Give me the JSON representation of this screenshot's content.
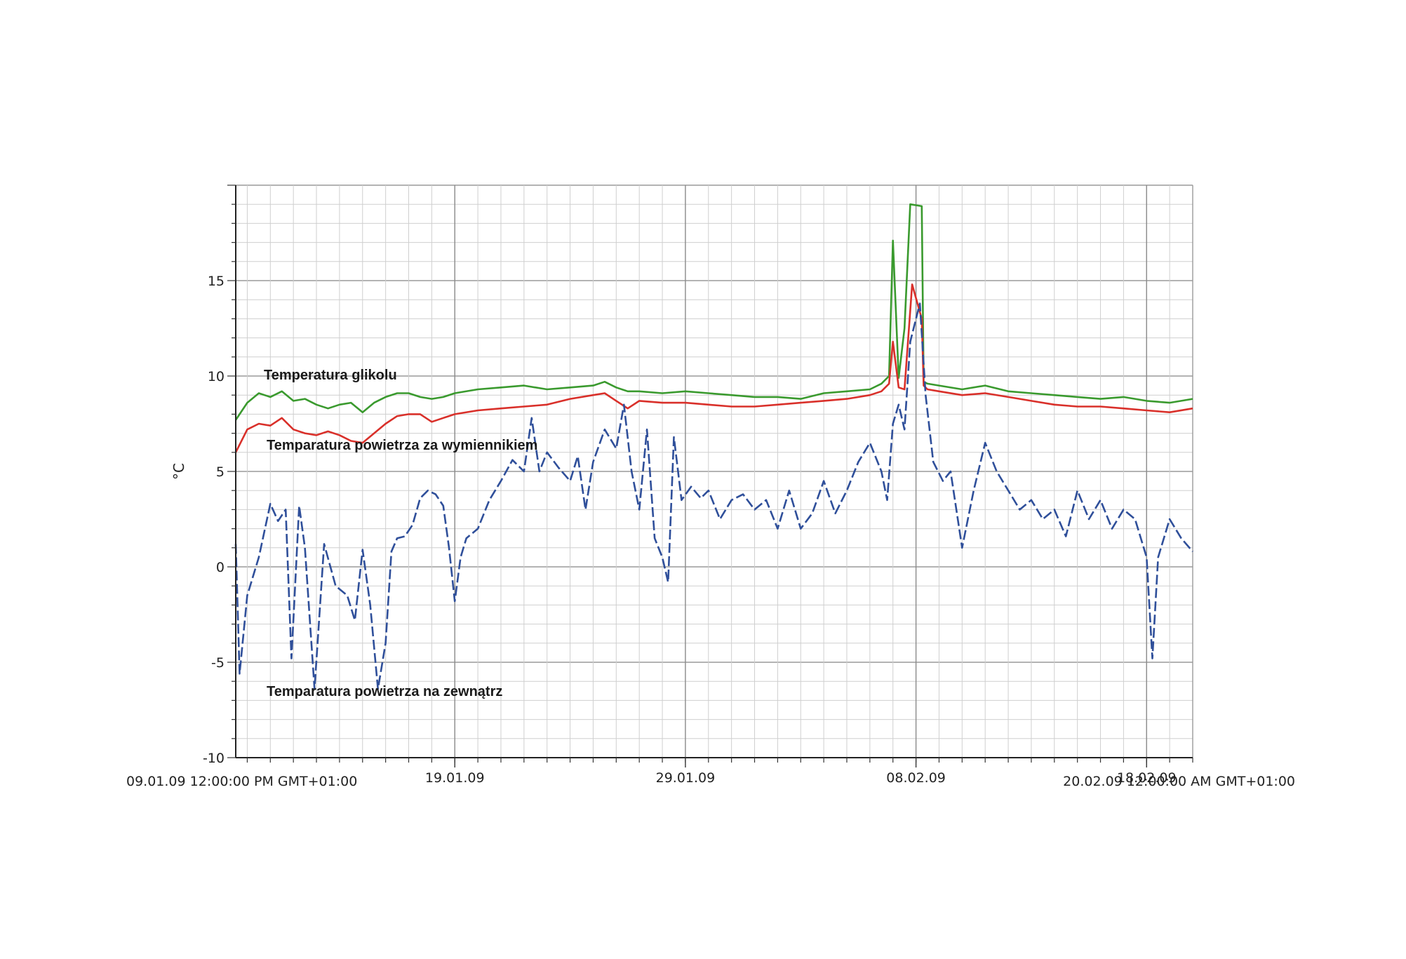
{
  "chart_data": {
    "type": "line",
    "ylabel": "°C",
    "ylim": [
      -10,
      20
    ],
    "yticks": [
      "15",
      "10",
      "5",
      "0",
      "-5",
      "-10"
    ],
    "x_start_label": "09.01.09 12:00:00 PM GMT+01:00",
    "x_end_label": "20.02.09 12:00:00 AM GMT+01:00",
    "xticks": [
      {
        "label": "19.01.09",
        "date": "2009-01-19"
      },
      {
        "label": "29.01.09",
        "date": "2009-01-29"
      },
      {
        "label": "08.02.09",
        "date": "2009-02-08"
      },
      {
        "label": "18.02.09",
        "date": "2009-02-18"
      }
    ],
    "x_range": [
      "2009-01-09 12:00",
      "2009-02-20 00:00"
    ],
    "grid": true,
    "annotations": [
      {
        "text": "Temperatura glikolu",
        "series": "Temperatura glikolu"
      },
      {
        "text": "Temparatura powietrza za wymiennikiem",
        "series": "Temparatura powietrza za wymiennikiem"
      },
      {
        "text": "Temparatura powietrza na zewnątrz",
        "series": "Temparatura powietrza na zewnątrz"
      }
    ],
    "series": [
      {
        "name": "Temperatura glikolu",
        "color": "#3a9a2e",
        "points": [
          [
            "2009-01-09 12:00",
            7.7
          ],
          [
            "2009-01-10 00:00",
            8.6
          ],
          [
            "2009-01-10 12:00",
            9.1
          ],
          [
            "2009-01-11 00:00",
            8.9
          ],
          [
            "2009-01-11 12:00",
            9.2
          ],
          [
            "2009-01-12 00:00",
            8.7
          ],
          [
            "2009-01-12 12:00",
            8.8
          ],
          [
            "2009-01-13 00:00",
            8.5
          ],
          [
            "2009-01-13 12:00",
            8.3
          ],
          [
            "2009-01-14 00:00",
            8.5
          ],
          [
            "2009-01-14 12:00",
            8.6
          ],
          [
            "2009-01-15 00:00",
            8.1
          ],
          [
            "2009-01-15 12:00",
            8.6
          ],
          [
            "2009-01-16 00:00",
            8.9
          ],
          [
            "2009-01-16 12:00",
            9.1
          ],
          [
            "2009-01-17 00:00",
            9.1
          ],
          [
            "2009-01-17 12:00",
            8.9
          ],
          [
            "2009-01-18 00:00",
            8.8
          ],
          [
            "2009-01-18 12:00",
            8.9
          ],
          [
            "2009-01-19 00:00",
            9.1
          ],
          [
            "2009-01-20 00:00",
            9.3
          ],
          [
            "2009-01-21 00:00",
            9.4
          ],
          [
            "2009-01-22 00:00",
            9.5
          ],
          [
            "2009-01-23 00:00",
            9.3
          ],
          [
            "2009-01-24 00:00",
            9.4
          ],
          [
            "2009-01-25 00:00",
            9.5
          ],
          [
            "2009-01-25 12:00",
            9.7
          ],
          [
            "2009-01-26 00:00",
            9.4
          ],
          [
            "2009-01-26 12:00",
            9.2
          ],
          [
            "2009-01-27 00:00",
            9.2
          ],
          [
            "2009-01-28 00:00",
            9.1
          ],
          [
            "2009-01-29 00:00",
            9.2
          ],
          [
            "2009-01-30 00:00",
            9.1
          ],
          [
            "2009-01-31 00:00",
            9.0
          ],
          [
            "2009-02-01 00:00",
            8.9
          ],
          [
            "2009-02-02 00:00",
            8.9
          ],
          [
            "2009-02-03 00:00",
            8.8
          ],
          [
            "2009-02-04 00:00",
            9.1
          ],
          [
            "2009-02-05 00:00",
            9.2
          ],
          [
            "2009-02-06 00:00",
            9.3
          ],
          [
            "2009-02-06 12:00",
            9.6
          ],
          [
            "2009-02-06 20:00",
            10.0
          ],
          [
            "2009-02-07 00:00",
            17.1
          ],
          [
            "2009-02-07 06:00",
            9.9
          ],
          [
            "2009-02-07 12:00",
            12.5
          ],
          [
            "2009-02-07 18:00",
            19.0
          ],
          [
            "2009-02-08 06:00",
            18.9
          ],
          [
            "2009-02-08 08:00",
            9.7
          ],
          [
            "2009-02-08 12:00",
            9.6
          ],
          [
            "2009-02-09 00:00",
            9.5
          ],
          [
            "2009-02-10 00:00",
            9.3
          ],
          [
            "2009-02-11 00:00",
            9.5
          ],
          [
            "2009-02-12 00:00",
            9.2
          ],
          [
            "2009-02-13 00:00",
            9.1
          ],
          [
            "2009-02-14 00:00",
            9.0
          ],
          [
            "2009-02-15 00:00",
            8.9
          ],
          [
            "2009-02-16 00:00",
            8.8
          ],
          [
            "2009-02-17 00:00",
            8.9
          ],
          [
            "2009-02-18 00:00",
            8.7
          ],
          [
            "2009-02-19 00:00",
            8.6
          ],
          [
            "2009-02-20 00:00",
            8.8
          ]
        ]
      },
      {
        "name": "Temparatura powietrza za wymiennikiem",
        "color": "#d9302a",
        "points": [
          [
            "2009-01-09 12:00",
            6.0
          ],
          [
            "2009-01-10 00:00",
            7.2
          ],
          [
            "2009-01-10 12:00",
            7.5
          ],
          [
            "2009-01-11 00:00",
            7.4
          ],
          [
            "2009-01-11 12:00",
            7.8
          ],
          [
            "2009-01-12 00:00",
            7.2
          ],
          [
            "2009-01-12 12:00",
            7.0
          ],
          [
            "2009-01-13 00:00",
            6.9
          ],
          [
            "2009-01-13 12:00",
            7.1
          ],
          [
            "2009-01-14 00:00",
            6.9
          ],
          [
            "2009-01-14 12:00",
            6.6
          ],
          [
            "2009-01-15 00:00",
            6.5
          ],
          [
            "2009-01-15 12:00",
            7.0
          ],
          [
            "2009-01-16 00:00",
            7.5
          ],
          [
            "2009-01-16 12:00",
            7.9
          ],
          [
            "2009-01-17 00:00",
            8.0
          ],
          [
            "2009-01-17 12:00",
            8.0
          ],
          [
            "2009-01-18 00:00",
            7.6
          ],
          [
            "2009-01-18 12:00",
            7.8
          ],
          [
            "2009-01-19 00:00",
            8.0
          ],
          [
            "2009-01-20 00:00",
            8.2
          ],
          [
            "2009-01-21 00:00",
            8.3
          ],
          [
            "2009-01-22 00:00",
            8.4
          ],
          [
            "2009-01-23 00:00",
            8.5
          ],
          [
            "2009-01-24 00:00",
            8.8
          ],
          [
            "2009-01-25 00:00",
            9.0
          ],
          [
            "2009-01-25 12:00",
            9.1
          ],
          [
            "2009-01-26 00:00",
            8.7
          ],
          [
            "2009-01-26 12:00",
            8.3
          ],
          [
            "2009-01-27 00:00",
            8.7
          ],
          [
            "2009-01-28 00:00",
            8.6
          ],
          [
            "2009-01-29 00:00",
            8.6
          ],
          [
            "2009-01-30 00:00",
            8.5
          ],
          [
            "2009-01-31 00:00",
            8.4
          ],
          [
            "2009-02-01 00:00",
            8.4
          ],
          [
            "2009-02-02 00:00",
            8.5
          ],
          [
            "2009-02-03 00:00",
            8.6
          ],
          [
            "2009-02-04 00:00",
            8.7
          ],
          [
            "2009-02-05 00:00",
            8.8
          ],
          [
            "2009-02-06 00:00",
            9.0
          ],
          [
            "2009-02-06 12:00",
            9.2
          ],
          [
            "2009-02-06 20:00",
            9.6
          ],
          [
            "2009-02-07 00:00",
            11.8
          ],
          [
            "2009-02-07 06:00",
            9.4
          ],
          [
            "2009-02-07 12:00",
            9.3
          ],
          [
            "2009-02-07 20:00",
            14.8
          ],
          [
            "2009-02-08 06:00",
            13.0
          ],
          [
            "2009-02-08 08:00",
            9.5
          ],
          [
            "2009-02-08 12:00",
            9.3
          ],
          [
            "2009-02-09 00:00",
            9.2
          ],
          [
            "2009-02-10 00:00",
            9.0
          ],
          [
            "2009-02-11 00:00",
            9.1
          ],
          [
            "2009-02-12 00:00",
            8.9
          ],
          [
            "2009-02-13 00:00",
            8.7
          ],
          [
            "2009-02-14 00:00",
            8.5
          ],
          [
            "2009-02-15 00:00",
            8.4
          ],
          [
            "2009-02-16 00:00",
            8.4
          ],
          [
            "2009-02-17 00:00",
            8.3
          ],
          [
            "2009-02-18 00:00",
            8.2
          ],
          [
            "2009-02-19 00:00",
            8.1
          ],
          [
            "2009-02-20 00:00",
            8.3
          ]
        ]
      },
      {
        "name": "Temparatura powietrza na zewnątrz",
        "color": "#2f4f9a",
        "dashed": true,
        "points": [
          [
            "2009-01-09 12:00",
            1.2
          ],
          [
            "2009-01-09 16:00",
            -5.6
          ],
          [
            "2009-01-10 00:00",
            -1.5
          ],
          [
            "2009-01-10 12:00",
            0.5
          ],
          [
            "2009-01-11 00:00",
            3.3
          ],
          [
            "2009-01-11 08:00",
            2.4
          ],
          [
            "2009-01-11 16:00",
            3.0
          ],
          [
            "2009-01-11 22:00",
            -4.8
          ],
          [
            "2009-01-12 06:00",
            3.2
          ],
          [
            "2009-01-12 12:00",
            1.0
          ],
          [
            "2009-01-12 22:00",
            -6.4
          ],
          [
            "2009-01-13 08:00",
            1.2
          ],
          [
            "2009-01-13 20:00",
            -1.0
          ],
          [
            "2009-01-14 08:00",
            -1.5
          ],
          [
            "2009-01-14 16:00",
            -2.8
          ],
          [
            "2009-01-15 00:00",
            0.9
          ],
          [
            "2009-01-15 08:00",
            -2.0
          ],
          [
            "2009-01-15 16:00",
            -6.4
          ],
          [
            "2009-01-16 00:00",
            -4.0
          ],
          [
            "2009-01-16 06:00",
            0.8
          ],
          [
            "2009-01-16 12:00",
            1.5
          ],
          [
            "2009-01-16 20:00",
            1.6
          ],
          [
            "2009-01-17 04:00",
            2.2
          ],
          [
            "2009-01-17 12:00",
            3.6
          ],
          [
            "2009-01-17 20:00",
            4.0
          ],
          [
            "2009-01-18 04:00",
            3.8
          ],
          [
            "2009-01-18 12:00",
            3.2
          ],
          [
            "2009-01-18 18:00",
            1.0
          ],
          [
            "2009-01-19 00:00",
            -1.8
          ],
          [
            "2009-01-19 06:00",
            0.5
          ],
          [
            "2009-01-19 12:00",
            1.5
          ],
          [
            "2009-01-20 00:00",
            2.0
          ],
          [
            "2009-01-20 12:00",
            3.5
          ],
          [
            "2009-01-21 00:00",
            4.5
          ],
          [
            "2009-01-21 12:00",
            5.6
          ],
          [
            "2009-01-22 00:00",
            5.0
          ],
          [
            "2009-01-22 08:00",
            7.8
          ],
          [
            "2009-01-22 16:00",
            5.0
          ],
          [
            "2009-01-23 00:00",
            6.0
          ],
          [
            "2009-01-23 12:00",
            5.2
          ],
          [
            "2009-01-24 00:00",
            4.5
          ],
          [
            "2009-01-24 08:00",
            5.8
          ],
          [
            "2009-01-24 16:00",
            3.0
          ],
          [
            "2009-01-25 00:00",
            5.5
          ],
          [
            "2009-01-25 12:00",
            7.2
          ],
          [
            "2009-01-26 00:00",
            6.2
          ],
          [
            "2009-01-26 08:00",
            8.5
          ],
          [
            "2009-01-26 16:00",
            5.0
          ],
          [
            "2009-01-27 00:00",
            3.0
          ],
          [
            "2009-01-27 08:00",
            7.2
          ],
          [
            "2009-01-27 16:00",
            1.5
          ],
          [
            "2009-01-28 00:00",
            0.5
          ],
          [
            "2009-01-28 06:00",
            -0.8
          ],
          [
            "2009-01-28 12:00",
            6.8
          ],
          [
            "2009-01-28 20:00",
            3.5
          ],
          [
            "2009-01-29 06:00",
            4.2
          ],
          [
            "2009-01-29 16:00",
            3.6
          ],
          [
            "2009-01-30 00:00",
            4.0
          ],
          [
            "2009-01-30 12:00",
            2.5
          ],
          [
            "2009-01-31 00:00",
            3.5
          ],
          [
            "2009-01-31 12:00",
            3.8
          ],
          [
            "2009-02-01 00:00",
            3.0
          ],
          [
            "2009-02-01 12:00",
            3.5
          ],
          [
            "2009-02-02 00:00",
            2.0
          ],
          [
            "2009-02-02 12:00",
            4.0
          ],
          [
            "2009-02-03 00:00",
            2.0
          ],
          [
            "2009-02-03 12:00",
            2.8
          ],
          [
            "2009-02-04 00:00",
            4.5
          ],
          [
            "2009-02-04 12:00",
            2.8
          ],
          [
            "2009-02-05 00:00",
            4.0
          ],
          [
            "2009-02-05 12:00",
            5.5
          ],
          [
            "2009-02-06 00:00",
            6.5
          ],
          [
            "2009-02-06 12:00",
            5.0
          ],
          [
            "2009-02-06 18:00",
            3.5
          ],
          [
            "2009-02-07 00:00",
            7.5
          ],
          [
            "2009-02-07 06:00",
            8.5
          ],
          [
            "2009-02-07 12:00",
            7.2
          ],
          [
            "2009-02-07 18:00",
            11.8
          ],
          [
            "2009-02-08 04:00",
            13.8
          ],
          [
            "2009-02-08 10:00",
            9.0
          ],
          [
            "2009-02-08 18:00",
            5.5
          ],
          [
            "2009-02-09 04:00",
            4.5
          ],
          [
            "2009-02-09 12:00",
            5.0
          ],
          [
            "2009-02-10 00:00",
            1.0
          ],
          [
            "2009-02-10 12:00",
            4.0
          ],
          [
            "2009-02-11 00:00",
            6.5
          ],
          [
            "2009-02-11 12:00",
            5.0
          ],
          [
            "2009-02-12 00:00",
            4.0
          ],
          [
            "2009-02-12 12:00",
            3.0
          ],
          [
            "2009-02-13 00:00",
            3.5
          ],
          [
            "2009-02-13 12:00",
            2.5
          ],
          [
            "2009-02-14 00:00",
            3.0
          ],
          [
            "2009-02-14 12:00",
            1.6
          ],
          [
            "2009-02-15 00:00",
            4.0
          ],
          [
            "2009-02-15 12:00",
            2.5
          ],
          [
            "2009-02-16 00:00",
            3.5
          ],
          [
            "2009-02-16 12:00",
            2.0
          ],
          [
            "2009-02-17 00:00",
            3.0
          ],
          [
            "2009-02-17 12:00",
            2.5
          ],
          [
            "2009-02-18 00:00",
            0.5
          ],
          [
            "2009-02-18 06:00",
            -4.8
          ],
          [
            "2009-02-18 12:00",
            0.5
          ],
          [
            "2009-02-19 00:00",
            2.5
          ],
          [
            "2009-02-19 12:00",
            1.5
          ],
          [
            "2009-02-20 00:00",
            0.8
          ]
        ]
      }
    ]
  }
}
